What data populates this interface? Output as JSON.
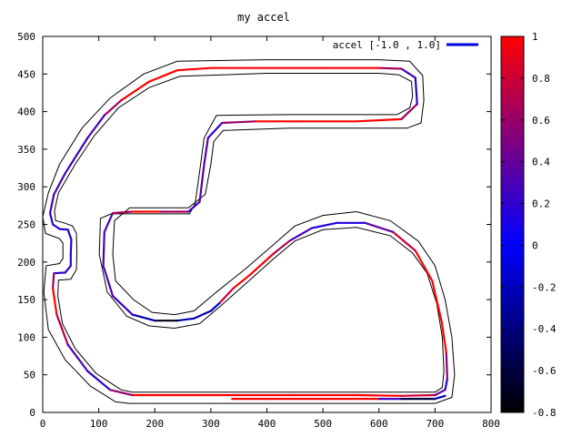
{
  "chart_data": {
    "type": "line",
    "title": "my accel",
    "legend": {
      "label": "accel [-1.0 , 1.0]",
      "color": "#0000e0",
      "placement": "top-right"
    },
    "xlim": [
      0,
      800
    ],
    "ylim": [
      0,
      500
    ],
    "xticks": [
      "0",
      "100",
      "200",
      "300",
      "400",
      "500",
      "600",
      "700",
      "800"
    ],
    "yticks": [
      "0",
      "50",
      "100",
      "150",
      "200",
      "250",
      "300",
      "350",
      "400",
      "450",
      "500"
    ],
    "colorbar": {
      "ticks": [
        "1",
        "0.8",
        "0.6",
        "0.4",
        "0.2",
        "0",
        "-0.2",
        "-0.4",
        "-0.6",
        "-0.8"
      ],
      "range": [
        -0.8,
        1
      ],
      "colors": [
        "#000000",
        "#0000ff",
        "#ff0000"
      ]
    },
    "series": [
      {
        "role": "racing-line",
        "points": [
          [
            160,
            23,
            1
          ],
          [
            300,
            23,
            1
          ],
          [
            440,
            23,
            1
          ],
          [
            560,
            23,
            1
          ],
          [
            640,
            22,
            1
          ],
          [
            700,
            23,
            0.6
          ],
          [
            718,
            30,
            0.2
          ],
          [
            722,
            45,
            0.1
          ],
          [
            720,
            80,
            1
          ],
          [
            712,
            120,
            1
          ],
          [
            695,
            175,
            1
          ],
          [
            665,
            215,
            1
          ],
          [
            625,
            240,
            0.6
          ],
          [
            575,
            252,
            0.2
          ],
          [
            525,
            252,
            0.1
          ],
          [
            480,
            245,
            0.2
          ],
          [
            440,
            228,
            0.4
          ],
          [
            410,
            210,
            1
          ],
          [
            370,
            183,
            1
          ],
          [
            340,
            165,
            1
          ],
          [
            315,
            145,
            0.6
          ],
          [
            300,
            135,
            -0.8
          ],
          [
            270,
            125,
            0.3
          ],
          [
            240,
            122,
            -0.8
          ],
          [
            200,
            122,
            -0.7
          ],
          [
            160,
            130,
            0.2
          ],
          [
            125,
            155,
            0.3
          ],
          [
            108,
            195,
            0.3
          ],
          [
            110,
            240,
            0.3
          ],
          [
            125,
            265,
            0.3
          ],
          [
            160,
            267,
            1
          ],
          [
            210,
            267,
            1
          ],
          [
            260,
            267,
            0.3
          ],
          [
            280,
            280,
            0.2
          ],
          [
            288,
            330,
            0.5
          ],
          [
            295,
            365,
            0.2
          ],
          [
            320,
            385,
            0.2
          ],
          [
            380,
            387,
            1
          ],
          [
            460,
            387,
            1
          ],
          [
            560,
            387,
            1
          ],
          [
            640,
            390,
            1
          ],
          [
            668,
            410,
            0.2
          ],
          [
            665,
            445,
            0.2
          ],
          [
            640,
            457,
            0.3
          ],
          [
            600,
            458,
            1
          ],
          [
            500,
            458,
            1
          ],
          [
            400,
            458,
            1
          ],
          [
            300,
            458,
            1
          ],
          [
            240,
            455,
            1
          ],
          [
            190,
            440,
            1
          ],
          [
            140,
            415,
            1
          ],
          [
            110,
            395,
            0.3
          ],
          [
            80,
            365,
            0.3
          ],
          [
            40,
            318,
            0.2
          ],
          [
            20,
            290,
            0.4
          ],
          [
            13,
            265,
            0.2
          ],
          [
            18,
            250,
            0.2
          ],
          [
            30,
            244,
            0.2
          ],
          [
            45,
            243,
            0.2
          ],
          [
            51,
            230,
            0.2
          ],
          [
            50,
            210,
            0.2
          ],
          [
            50,
            195,
            0.2
          ],
          [
            40,
            186,
            0.2
          ],
          [
            20,
            185,
            0.2
          ],
          [
            18,
            165,
            1
          ],
          [
            25,
            130,
            1
          ],
          [
            45,
            90,
            0.4
          ],
          [
            80,
            55,
            0.2
          ],
          [
            120,
            30,
            0.2
          ],
          [
            160,
            23,
            1
          ]
        ]
      },
      {
        "role": "pit-lane",
        "points": [
          [
            338,
            18,
            1
          ],
          [
            600,
            18,
            1
          ],
          [
            640,
            18,
            -0.5
          ],
          [
            700,
            18,
            -0.7
          ],
          [
            718,
            22,
            0.2
          ]
        ]
      }
    ],
    "track_edges": [
      [
        [
          155,
          12
        ],
        [
          460,
          12
        ],
        [
          700,
          12
        ],
        [
          730,
          20
        ],
        [
          735,
          50
        ],
        [
          730,
          100
        ],
        [
          718,
          150
        ],
        [
          700,
          195
        ],
        [
          670,
          228
        ],
        [
          620,
          255
        ],
        [
          560,
          267
        ],
        [
          500,
          262
        ],
        [
          450,
          248
        ],
        [
          410,
          222
        ],
        [
          360,
          190
        ],
        [
          310,
          160
        ],
        [
          270,
          135
        ],
        [
          235,
          130
        ],
        [
          195,
          133
        ],
        [
          162,
          150
        ],
        [
          130,
          175
        ],
        [
          125,
          210
        ],
        [
          128,
          255
        ],
        [
          155,
          272
        ],
        [
          260,
          272
        ],
        [
          290,
          290
        ],
        [
          300,
          330
        ],
        [
          305,
          360
        ],
        [
          322,
          375
        ],
        [
          440,
          378
        ],
        [
          650,
          378
        ],
        [
          675,
          385
        ],
        [
          680,
          415
        ],
        [
          678,
          448
        ],
        [
          655,
          467
        ],
        [
          600,
          469
        ],
        [
          400,
          469
        ],
        [
          240,
          467
        ],
        [
          180,
          450
        ],
        [
          120,
          418
        ],
        [
          70,
          378
        ],
        [
          30,
          330
        ],
        [
          10,
          292
        ],
        [
          0,
          260
        ],
        [
          5,
          238
        ],
        [
          30,
          231
        ],
        [
          36,
          225
        ],
        [
          36,
          212
        ],
        [
          36,
          205
        ],
        [
          30,
          198
        ],
        [
          6,
          195
        ],
        [
          2,
          160
        ],
        [
          10,
          110
        ],
        [
          40,
          70
        ],
        [
          85,
          35
        ],
        [
          130,
          14
        ],
        [
          155,
          12
        ]
      ],
      [
        [
          160,
          27
        ],
        [
          460,
          27
        ],
        [
          700,
          27
        ],
        [
          713,
          33
        ],
        [
          716,
          55
        ],
        [
          713,
          100
        ],
        [
          703,
          145
        ],
        [
          686,
          185
        ],
        [
          660,
          212
        ],
        [
          620,
          235
        ],
        [
          560,
          246
        ],
        [
          500,
          243
        ],
        [
          450,
          228
        ],
        [
          410,
          203
        ],
        [
          365,
          173
        ],
        [
          318,
          142
        ],
        [
          280,
          118
        ],
        [
          235,
          112
        ],
        [
          190,
          115
        ],
        [
          150,
          128
        ],
        [
          115,
          160
        ],
        [
          101,
          210
        ],
        [
          103,
          258
        ],
        [
          122,
          264
        ],
        [
          262,
          264
        ],
        [
          272,
          278
        ],
        [
          280,
          320
        ],
        [
          288,
          365
        ],
        [
          310,
          395
        ],
        [
          440,
          396
        ],
        [
          632,
          396
        ],
        [
          655,
          405
        ],
        [
          660,
          420
        ],
        [
          658,
          440
        ],
        [
          635,
          449
        ],
        [
          600,
          451
        ],
        [
          400,
          451
        ],
        [
          245,
          447
        ],
        [
          190,
          432
        ],
        [
          135,
          405
        ],
        [
          92,
          368
        ],
        [
          58,
          330
        ],
        [
          28,
          292
        ],
        [
          21,
          268
        ],
        [
          23,
          255
        ],
        [
          38,
          252
        ],
        [
          53,
          248
        ],
        [
          60,
          238
        ],
        [
          61,
          212
        ],
        [
          60,
          190
        ],
        [
          50,
          177
        ],
        [
          28,
          176
        ],
        [
          27,
          155
        ],
        [
          35,
          118
        ],
        [
          58,
          85
        ],
        [
          95,
          52
        ],
        [
          140,
          30
        ],
        [
          160,
          27
        ]
      ]
    ]
  }
}
